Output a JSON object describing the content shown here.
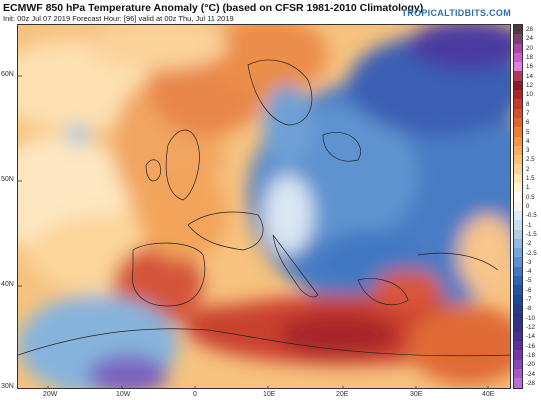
{
  "header": {
    "title": "ECMWF 850 hPa Temperature Anomaly (°C) (based on CFSR 1981-2010 Climatology)",
    "subtitle": "Init: 00z Jul 07 2019   Forecast Hour: [96]   valid at 00z Thu, Jul 11 2019",
    "brand": "TROPICALTIDBITS.COM"
  },
  "map": {
    "lat_labels": [
      "60N",
      "50N",
      "40N",
      "30N"
    ],
    "lon_labels": [
      "20W",
      "10W",
      "0",
      "10E",
      "20E",
      "30E",
      "40E"
    ]
  },
  "colorbar": {
    "labels": [
      "28",
      "24",
      "20",
      "18",
      "16",
      "14",
      "12",
      "10",
      "8",
      "7",
      "6",
      "5",
      "4",
      "3",
      "2.5",
      "2",
      "1.5",
      "1",
      "0.5",
      "0",
      "-0.5",
      "-1",
      "-1.5",
      "-2",
      "-2.5",
      "-3",
      "-4",
      "-5",
      "-6",
      "-7",
      "-8",
      "-10",
      "-12",
      "-14",
      "-16",
      "-18",
      "-20",
      "-24",
      "-28"
    ],
    "colors": [
      "#4d3b3b",
      "#7a3f6e",
      "#a54aa0",
      "#c95fc7",
      "#e07ee0",
      "#b03a5a",
      "#8c1a2a",
      "#a8252a",
      "#c23a2a",
      "#d4502a",
      "#e0652e",
      "#ea7e38",
      "#f29549",
      "#f6ab5e",
      "#f9bf78",
      "#fbd295",
      "#fde4b5",
      "#fff2d6",
      "#fffaf0",
      "#f4f4f4",
      "#dfe9f4",
      "#c8dcef",
      "#aecbe7",
      "#93b9e0",
      "#77a5d8",
      "#5c90ce",
      "#4178c2",
      "#2f63b5",
      "#2452a3",
      "#1f4896",
      "#233d88",
      "#2a3480",
      "#372f85",
      "#4a2d90",
      "#5e2f9c",
      "#7338aa",
      "#8a47b8",
      "#a35ac6",
      "#b86fd2"
    ]
  }
}
